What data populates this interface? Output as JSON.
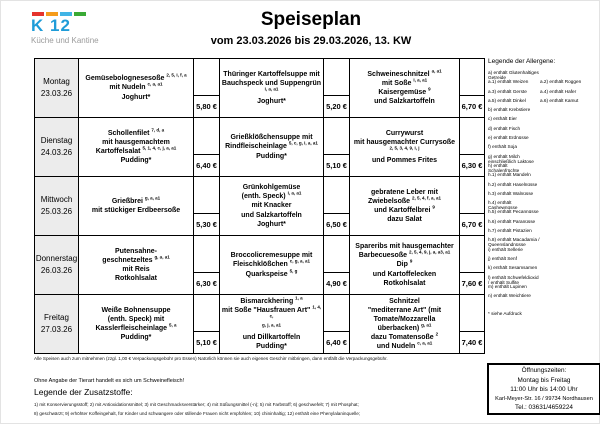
{
  "logo": {
    "name": "K 12",
    "subtitle": "Küche und Kantine",
    "dash_colors": [
      "#e5332d",
      "#f59c1c",
      "#40b4e5",
      "#3aaa35"
    ],
    "brand_blue": "#1f9cd8"
  },
  "header": {
    "title": "Speiseplan",
    "subtitle": "vom 23.03.2026 bis 29.03.2026, 13. KW"
  },
  "menu": {
    "rows": [
      {
        "day": "Montag",
        "date": "23.03.26",
        "meals": [
          {
            "lines": [
              [
                {
                  "t": "Gemüsebolognesesoße "
                },
                {
                  "s": "2, 5, i, f, a"
                }
              ],
              [
                {
                  "t": "mit Nudeln "
                },
                {
                  "s": "c, a, a1"
                }
              ],
              [
                {
                  "t": "Joghurt*"
                }
              ]
            ],
            "price": "5,80 €"
          },
          {
            "lines": [
              [
                {
                  "t": "Thüringer Kartoffelsuppe mit"
                }
              ],
              [
                {
                  "t": "Bauchspeck und Suppengrün "
                },
                {
                  "s": "i, a, a1"
                }
              ],
              [
                {
                  "t": "Joghurt*"
                }
              ]
            ],
            "price": "5,20 €"
          },
          {
            "lines": [
              [
                {
                  "t": "Schweineschnitzel "
                },
                {
                  "s": "a, a1"
                }
              ],
              [
                {
                  "t": "mit Soße "
                },
                {
                  "s": "i, a, a1"
                }
              ],
              [
                {
                  "t": "Kaisergemüse "
                },
                {
                  "s": "9"
                }
              ],
              [
                {
                  "t": "und Salzkartoffeln"
                }
              ]
            ],
            "price": "6,70 €"
          }
        ]
      },
      {
        "day": "Dienstag",
        "date": "24.03.26",
        "meals": [
          {
            "lines": [
              [
                {
                  "t": "Schollenfilet "
                },
                {
                  "s": "7, d, a"
                }
              ],
              [
                {
                  "t": "mit hausgemachtem"
                }
              ],
              [
                {
                  "t": "Kartoffelsalat "
                },
                {
                  "s": "5, 1, 4, c, j, a, a1"
                }
              ],
              [
                {
                  "t": "Pudding*"
                }
              ]
            ],
            "price": "6,40 €"
          },
          {
            "lines": [
              [
                {
                  "t": "Grießklößchensuppe mit"
                }
              ],
              [
                {
                  "t": "Rindfleischeinlage "
                },
                {
                  "s": "5, c, g, i, a, a1"
                }
              ],
              [
                {
                  "t": "Pudding*"
                }
              ]
            ],
            "price": "5,10 €"
          },
          {
            "lines": [
              [
                {
                  "t": "Currywurst"
                }
              ],
              [
                {
                  "t": "mit hausgemachter Currysoße"
                }
              ],
              [
                {
                  "s": "2, 5, 3, 4, 9, i, j"
                }
              ],
              [
                {
                  "t": "und Pommes Frites"
                }
              ]
            ],
            "price": "6,30 €"
          }
        ]
      },
      {
        "day": "Mittwoch",
        "date": "25.03.26",
        "meals": [
          {
            "lines": [
              [
                {
                  "t": "Grießbrei "
                },
                {
                  "s": "g, a, a1"
                }
              ],
              [
                {
                  "t": "mit stückiger Erdbeersoße"
                }
              ]
            ],
            "price": "5,30 €"
          },
          {
            "lines": [
              [
                {
                  "t": "Grünkohlgemüse"
                }
              ],
              [
                {
                  "t": "(enth. Speck) "
                },
                {
                  "s": "i, a, a1"
                }
              ],
              [
                {
                  "t": "mit Knacker"
                }
              ],
              [
                {
                  "t": "und Salzkartoffeln"
                }
              ],
              [
                {
                  "t": "Joghurt*"
                }
              ]
            ],
            "price": "6,50 €"
          },
          {
            "lines": [
              [
                {
                  "t": "gebratene Leber mit"
                }
              ],
              [
                {
                  "t": "Zwiebelsoße "
                },
                {
                  "s": "2, 5, 4, f, a, a1"
                }
              ],
              [
                {
                  "t": "und Kartoffelbrei "
                },
                {
                  "s": "9"
                }
              ],
              [
                {
                  "t": "dazu Salat"
                }
              ]
            ],
            "price": "6,70 €"
          }
        ]
      },
      {
        "day": "Donnerstag",
        "date": "26.03.26",
        "meals": [
          {
            "lines": [
              [
                {
                  "t": "Putensahne-"
                }
              ],
              [
                {
                  "t": "geschnetzeltes "
                },
                {
                  "s": "g, a, a1"
                }
              ],
              [
                {
                  "t": "mit Reis"
                }
              ],
              [
                {
                  "t": "Rotkohlsalat"
                }
              ]
            ],
            "price": "6,30 €"
          },
          {
            "lines": [
              [
                {
                  "t": "Broccolicremesuppe mit"
                }
              ],
              [
                {
                  "t": "Fleischklößchen "
                },
                {
                  "s": "c, g, a, a1"
                }
              ],
              [
                {
                  "t": "Quarkspeise "
                },
                {
                  "s": "5, g"
                }
              ]
            ],
            "price": "4,90 €"
          },
          {
            "lines": [
              [
                {
                  "t": "Spareribs mit hausgemachter"
                }
              ],
              [
                {
                  "t": "Barbecuesoße "
                },
                {
                  "s": "2, 5, 4, 9, j, a, a3, a1"
                }
              ],
              [
                {
                  "t": "Dip "
                },
                {
                  "s": "9"
                }
              ],
              [
                {
                  "t": "und Kartoffelecken"
                }
              ],
              [
                {
                  "t": "Rotkohlsalat"
                }
              ]
            ],
            "price": "7,60 €"
          }
        ]
      },
      {
        "day": "Freitag",
        "date": "27.03.26",
        "meals": [
          {
            "lines": [
              [
                {
                  "t": "Weiße Bohnensuppe"
                }
              ],
              [
                {
                  "t": "(enth. Speck) mit"
                }
              ],
              [
                {
                  "t": "Kasslerfleischeinlage "
                },
                {
                  "s": "5, a"
                }
              ],
              [
                {
                  "t": "Pudding*"
                }
              ]
            ],
            "price": "5,10 €"
          },
          {
            "lines": [
              [
                {
                  "t": "Bismarckhering "
                },
                {
                  "s": "1, a"
                }
              ],
              [
                {
                  "t": "mit Soße \"Hausfrauen Art\" "
                },
                {
                  "s": "1, 4, c,"
                }
              ],
              [
                {
                  "s": "g, j, a, a1"
                }
              ],
              [
                {
                  "t": "und Dillkartoffeln"
                }
              ],
              [
                {
                  "t": "Pudding*"
                }
              ]
            ],
            "price": "6,40 €"
          },
          {
            "lines": [
              [
                {
                  "t": "Schnitzel"
                }
              ],
              [
                {
                  "t": "\"mediterrane Art\" (mit"
                }
              ],
              [
                {
                  "t": "Tomate/Mozzarella"
                }
              ],
              [
                {
                  "t": "überbacken) "
                },
                {
                  "s": "g, a1"
                }
              ],
              [
                {
                  "t": "dazu Tomatensoße "
                },
                {
                  "s": "2"
                }
              ],
              [
                {
                  "t": "und Nudeln "
                },
                {
                  "s": "c, a, a1"
                }
              ]
            ],
            "price": "7,40 €"
          }
        ]
      }
    ]
  },
  "allergen_legend": {
    "title": "Legende der Allergene:",
    "items": [
      {
        "l": "a) enthält Glutenhaltiges Getreide"
      },
      {
        "l": "a.1) enthält Weizen",
        "r": "a.2) enthält Roggen"
      },
      {
        "l": "a.3) enthält Gerste",
        "r": "a.4) enthält Hafer"
      },
      {
        "l": "a.5) enthält Dinkel",
        "r": "a.6) enthält Kamut"
      },
      {
        "l": "b) enthält Krebstiere"
      },
      {
        "l": "c) enthält Eier"
      },
      {
        "l": "d) enthält Fisch"
      },
      {
        "l": "e) enthält Erdnüsse"
      },
      {
        "l": "f) enthält Soja"
      },
      {
        "l": "g) enthält Milch einschließlich Laktose"
      },
      {
        "l": "h) enthält Schalenfrüchte"
      },
      {
        "l": "h.1) enthält Mandeln"
      },
      {
        "l": "h.2) enthält Haselnüsse"
      },
      {
        "l": "h.3) enthält Walnüsse"
      },
      {
        "l": "h.4) enthält Cashewnüsse"
      },
      {
        "l": "h.5) enthält Pecannüsse"
      },
      {
        "l": "h.6) enthält Paranüsse"
      },
      {
        "l": "h.7) enthält Pistazien"
      },
      {
        "l": "h.8) enthält Macadamia / Queenslandnüsse"
      },
      {
        "l": "i) enthält Sellerie"
      },
      {
        "l": "j) enthält Senf"
      },
      {
        "l": "k) enthält Sesamsamen"
      },
      {
        "l": "l) enthält Schwefeldioxid / enthält Sulfite"
      },
      {
        "l": "m) enthält Lupinen"
      },
      {
        "l": "n) enthält Weichtiere"
      }
    ],
    "footnote": "* siehe Aufdruck"
  },
  "notes": {
    "takeaway": "Alle Speisen auch zum mitnehmen (zzgl. 1,00 € Verpackungsgebühr pro Essen) Natürlich können sie auch eigenes Geschirr mitbringen, dann entfällt die Verpackungsgebühr.",
    "meat": "Ohne Angabe der Tierart handelt es sich um Schweinefleisch!",
    "additives_title": "Legende der Zusatzstoffe:",
    "additives_lines": [
      "1) mit Konservierungsstoff; 2) mit Antioxidationsmittel; 3) mit Geschmacksverstärker; 4) mit Süßungsmittel (-n); 5) mit Farbstoff; 6) geschwefelt; 7) mit Phosphat;",
      "8) geschwärzt; 9) erhöhter Koffeingehalt, für Kinder und schwangere oder stillende Frauen nicht empfohlen; 10) chininhaltig; 12) enthält eine Phenylalaninquelle;"
    ]
  },
  "opening_hours": {
    "lines": [
      "Öffnungszeiten:",
      "Montag bis Freitag",
      "11:00 Uhr bis 14:00 Uhr",
      "Karl-Meyer-Str. 16 / 99734 Nordhausen",
      "Tel.: 03631/4659224"
    ]
  }
}
